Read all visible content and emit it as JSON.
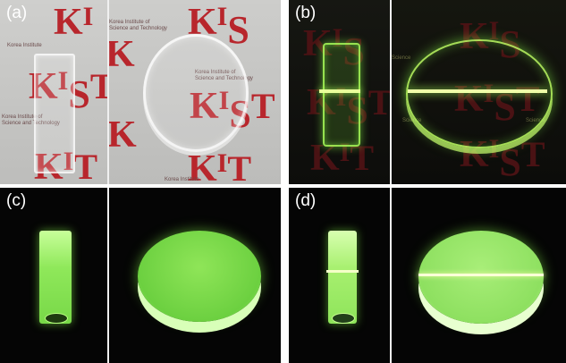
{
  "panels": {
    "a": {
      "label": "(a)"
    },
    "b": {
      "label": "(b)"
    },
    "c": {
      "label": "(c)"
    },
    "d": {
      "label": "(d)"
    }
  },
  "watermark": {
    "kist_k": "K",
    "kist_i": "I",
    "kist_s": "S",
    "kist_t": "T",
    "institute_line1": "Korea Institute of",
    "institute_line2": "Science and Technology",
    "korea_institute": "Korea Institute",
    "science": "Science"
  },
  "colors": {
    "kist_red": "#b8262c",
    "glow_green": "#8cff4a",
    "background_dark": "#0a0a0a",
    "paper_gray": "#c9c9c7"
  }
}
